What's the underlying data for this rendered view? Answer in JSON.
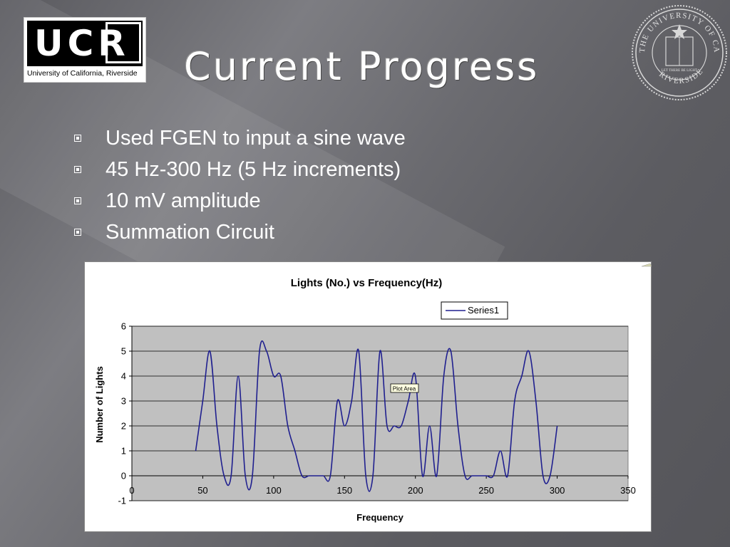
{
  "logo": {
    "letters": "UCR",
    "subtitle": "University of California, Riverside"
  },
  "seal": {
    "text_top": "THE UNIVERSITY OF CALIFORNIA",
    "text_bottom": "RIVERSIDE",
    "inner_text": "LET THERE BE LIGHT"
  },
  "slide": {
    "title": "Current Progress",
    "bullets": [
      "Used FGEN to input a sine wave",
      "45 Hz-300 Hz (5 Hz increments)",
      "10 mV amplitude",
      "Summation Circuit"
    ]
  },
  "colors": {
    "series": "#1f1f8f",
    "plot_bg": "#c0c0c0",
    "tooltip_bg": "#ffffe0"
  },
  "chart_data": {
    "type": "line",
    "title": "Lights (No.) vs Frequency(Hz)",
    "xlabel": "Frequency",
    "ylabel": "Number of Lights",
    "xlim": [
      0,
      350
    ],
    "ylim": [
      -1,
      6
    ],
    "xticks": [
      0,
      50,
      100,
      150,
      200,
      250,
      300,
      350
    ],
    "yticks": [
      -1,
      0,
      1,
      2,
      3,
      4,
      5,
      6
    ],
    "grid": "horizontal",
    "legend_position": "top-right",
    "tooltip": "Plot Area",
    "series": [
      {
        "name": "Series1",
        "x": [
          45,
          50,
          55,
          60,
          65,
          70,
          75,
          80,
          85,
          90,
          95,
          100,
          105,
          110,
          115,
          120,
          125,
          130,
          135,
          140,
          145,
          150,
          155,
          160,
          165,
          170,
          175,
          180,
          185,
          190,
          195,
          200,
          205,
          210,
          215,
          220,
          225,
          230,
          235,
          240,
          245,
          250,
          255,
          260,
          265,
          270,
          275,
          280,
          285,
          290,
          295,
          300
        ],
        "values": [
          1,
          3,
          5,
          2,
          0,
          0,
          4,
          0,
          0,
          5,
          5,
          4,
          4,
          2,
          1,
          0,
          0,
          0,
          0,
          0,
          3,
          2,
          3,
          5,
          0,
          0,
          5,
          2,
          2,
          2,
          3,
          4,
          0,
          2,
          0,
          4,
          5,
          2,
          0,
          0,
          0,
          0,
          0,
          1,
          0,
          3,
          4,
          5,
          3,
          0,
          0,
          2
        ]
      }
    ]
  }
}
